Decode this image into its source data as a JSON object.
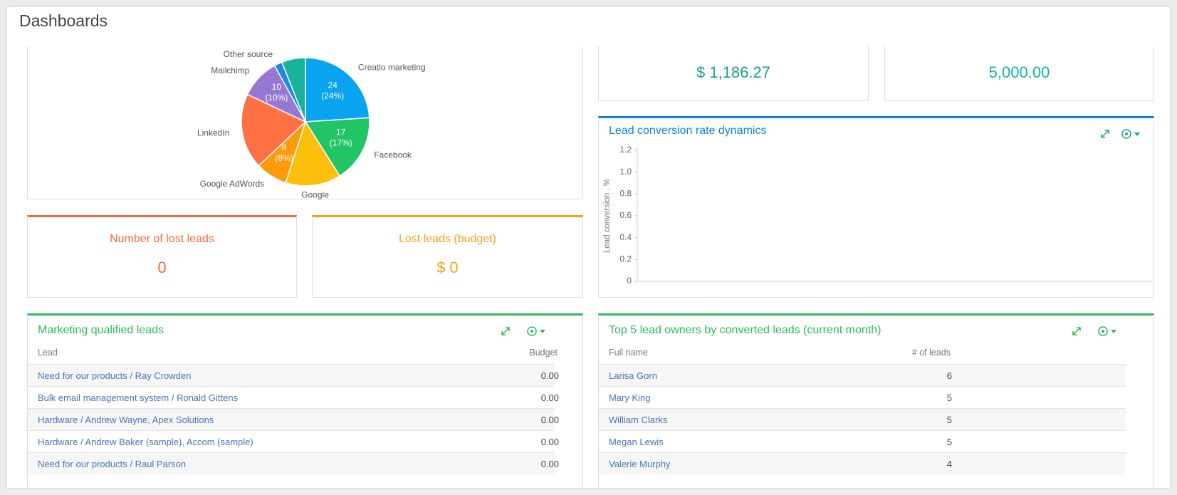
{
  "header": {
    "title": "Dashboards"
  },
  "chart_data": [
    {
      "type": "pie",
      "categories": [
        "Creatio marketing",
        "Facebook",
        "Google",
        "Google AdWords",
        "LinkedIn",
        "Mailchimp",
        "Other source",
        null
      ],
      "values": [
        24,
        17,
        14,
        8,
        19,
        10,
        2,
        6
      ],
      "value_labels": [
        "24 (24%)",
        "17 (17%)",
        null,
        "8 (8%)",
        null,
        "10 (10%)",
        null,
        null
      ],
      "colors": [
        "#0aa3f0",
        "#22c566",
        "#fcbf0b",
        "#ff9a0a",
        "#ff7043",
        "#9677d1",
        "#1e88e5",
        "#18b49a"
      ]
    },
    {
      "type": "line",
      "title": "Lead conversion rate dynamics",
      "ylabel": "Lead conversion , %",
      "ylim": [
        0,
        1.2
      ],
      "yticks": [
        0,
        0.2,
        0.4,
        0.6,
        0.8,
        {
          "value": 1,
          "label": "1.0"
        },
        1.2
      ],
      "series": [],
      "color": "#0e84d6"
    }
  ],
  "metrics": [
    {
      "value": "$ 1,186.27"
    },
    {
      "value": "5,000.00"
    },
    {
      "title": "Number of lost leads",
      "value": 0
    },
    {
      "title": "Lost leads (budget)",
      "value": "$ 0"
    }
  ],
  "tables": [
    {
      "title": "Marketing qualified leads",
      "columns": [
        "Lead",
        "Budget"
      ],
      "rows": [
        [
          "Need for our products / Ray Crowden",
          "0.00"
        ],
        [
          "Bulk email management system / Ronald Gittens",
          "0.00"
        ],
        [
          "Hardware / Andrew Wayne, Apex Solutions",
          "0.00"
        ],
        [
          "Hardware / Andrew Baker (sample), Accom (sample)",
          "0.00"
        ],
        [
          "Need for our products / Raul Parson",
          "0.00"
        ]
      ]
    },
    {
      "title": "Top 5 lead owners by converted leads (current month)",
      "columns": [
        "Full name",
        "# of leads"
      ],
      "rows": [
        [
          "Larisa Gorn",
          6
        ],
        [
          "Mary King",
          5
        ],
        [
          "William Clarks",
          5
        ],
        [
          "Megan Lewis",
          5
        ],
        [
          "Valerie Murphy",
          4
        ]
      ]
    }
  ]
}
